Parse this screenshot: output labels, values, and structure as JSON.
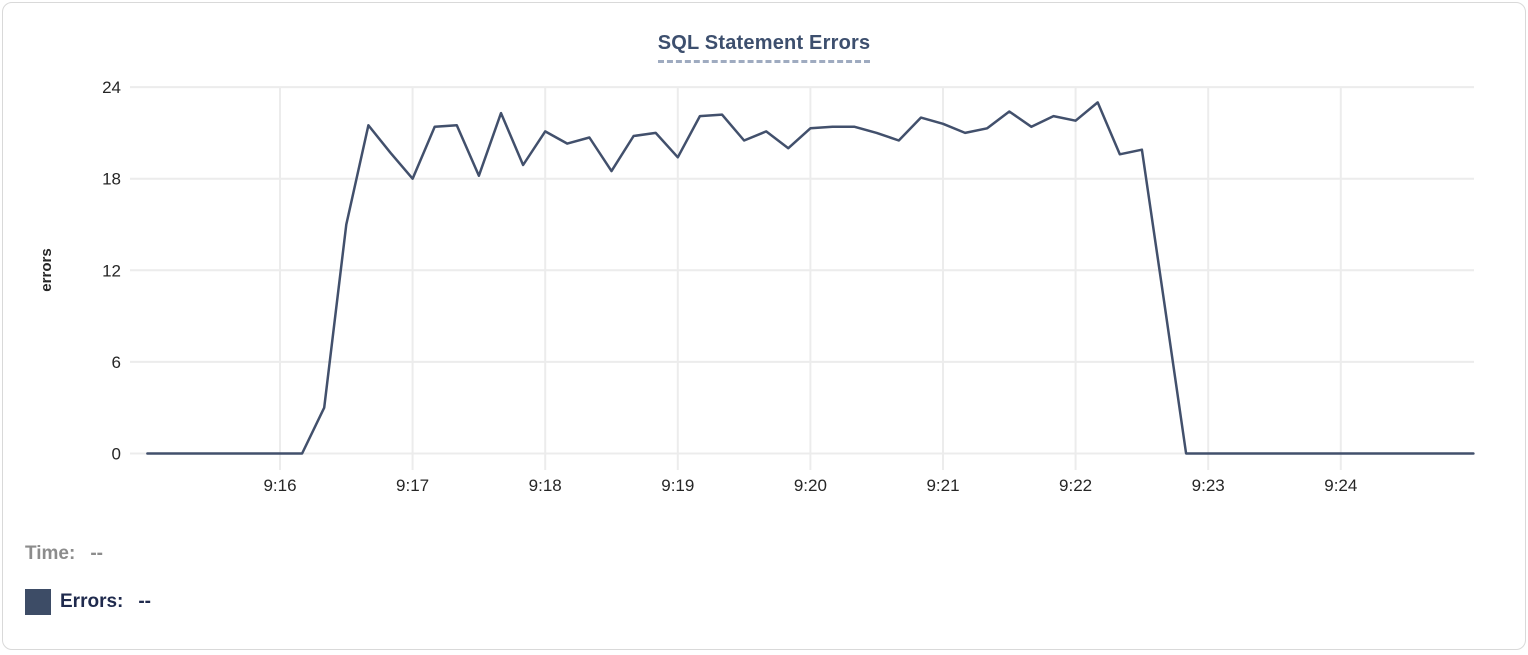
{
  "chart_data": {
    "type": "line",
    "title": "SQL Statement Errors",
    "xlabel": "",
    "ylabel": "errors",
    "ylim": [
      0,
      24
    ],
    "yticks": [
      0,
      6,
      12,
      18,
      24
    ],
    "xticks": [
      "9:16",
      "9:17",
      "9:18",
      "9:19",
      "9:20",
      "9:21",
      "9:22",
      "9:23",
      "9:24"
    ],
    "grid": true,
    "legend_position": "none",
    "line_color": "#42506c",
    "grid_color": "#ececec",
    "series": [
      {
        "name": "Errors",
        "color": "#42506c",
        "interval_seconds": 10,
        "times": [
          "9:15:00",
          "9:15:10",
          "9:15:20",
          "9:15:30",
          "9:15:40",
          "9:15:50",
          "9:16:00",
          "9:16:10",
          "9:16:20",
          "9:16:30",
          "9:16:40",
          "9:16:50",
          "9:17:00",
          "9:17:10",
          "9:17:20",
          "9:17:30",
          "9:17:40",
          "9:17:50",
          "9:18:00",
          "9:18:10",
          "9:18:20",
          "9:18:30",
          "9:18:40",
          "9:18:50",
          "9:19:00",
          "9:19:10",
          "9:19:20",
          "9:19:30",
          "9:19:40",
          "9:19:50",
          "9:20:00",
          "9:20:10",
          "9:20:20",
          "9:20:30",
          "9:20:40",
          "9:20:50",
          "9:21:00",
          "9:21:10",
          "9:21:20",
          "9:21:30",
          "9:21:40",
          "9:21:50",
          "9:22:00",
          "9:22:10",
          "9:22:20",
          "9:22:30",
          "9:22:40",
          "9:22:50",
          "9:23:00",
          "9:23:10",
          "9:23:20",
          "9:23:30",
          "9:23:40",
          "9:23:50",
          "9:24:00",
          "9:24:10",
          "9:24:20",
          "9:24:30",
          "9:24:40",
          "9:24:50",
          "9:25:00"
        ],
        "values": [
          0,
          0,
          0,
          0,
          0,
          0,
          0,
          0,
          3,
          15,
          21.5,
          19.7,
          18,
          21.4,
          21.5,
          18.2,
          22.3,
          18.9,
          21.1,
          20.3,
          20.7,
          18.5,
          20.8,
          21,
          19.4,
          22.1,
          22.2,
          20.5,
          21.1,
          20,
          21.3,
          21.4,
          21.4,
          21,
          20.5,
          22,
          21.6,
          21,
          21.3,
          22.4,
          21.4,
          22.1,
          21.8,
          23,
          19.6,
          19.9,
          10,
          0,
          0,
          0,
          0,
          0,
          0,
          0,
          0,
          0,
          0,
          0,
          0,
          0,
          0
        ]
      }
    ]
  },
  "hover_readout": {
    "time_label": "Time:",
    "time_value": "--",
    "errors_label": "Errors:",
    "errors_value": "--",
    "swatch_color": "#3d4c66"
  },
  "colors": {
    "title": "#3d4f6e",
    "title_underline": "#9fabc0",
    "line": "#42506c",
    "grid": "#ececec",
    "tick_label": "#262626",
    "time_label": "#8c8c8c",
    "errors_label": "#1f2a4d",
    "card_border": "#d9d9d9"
  }
}
